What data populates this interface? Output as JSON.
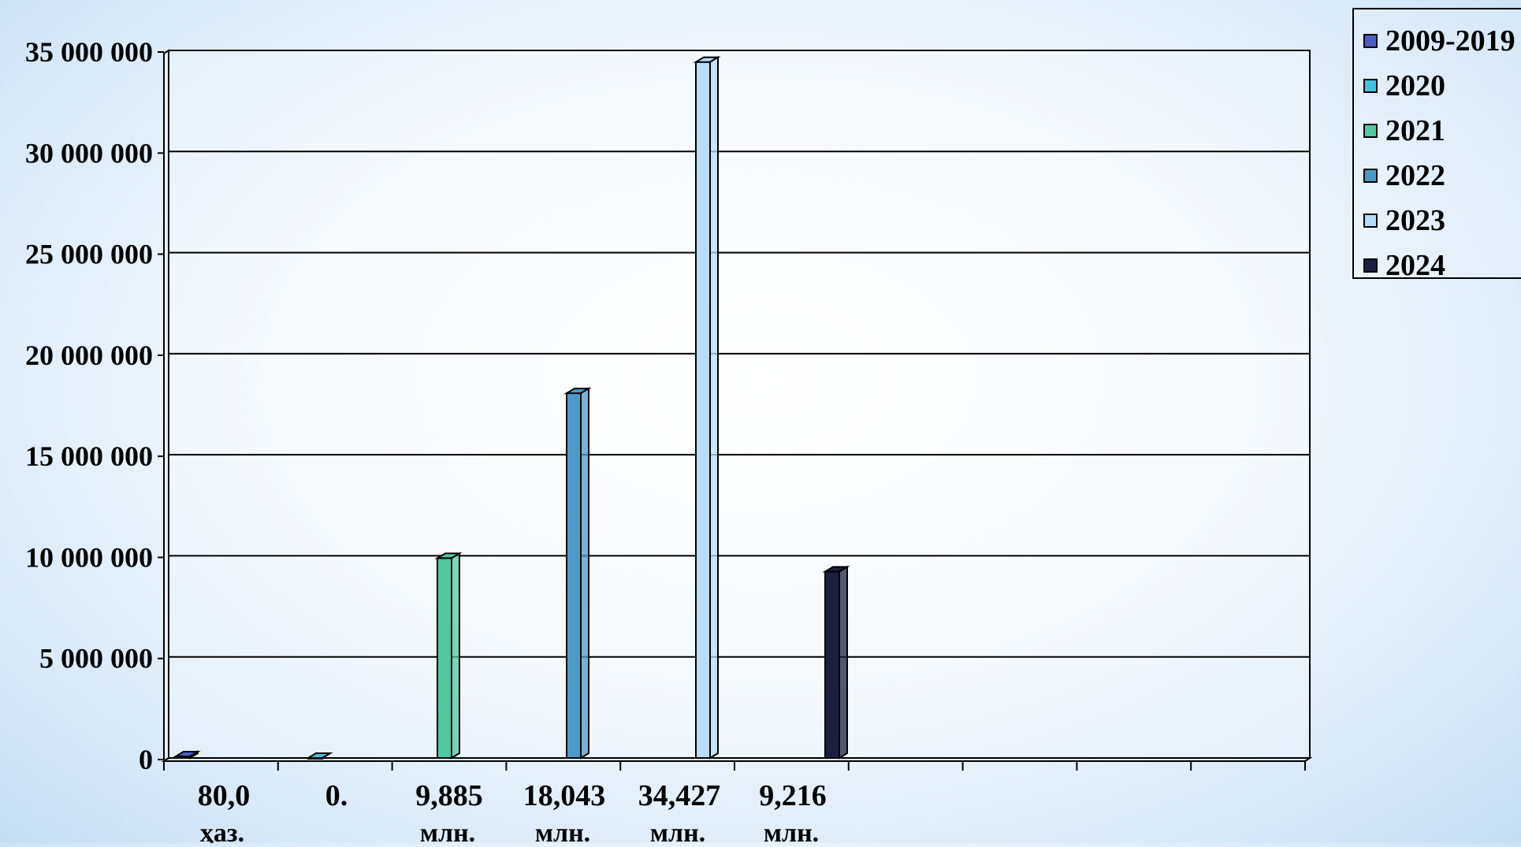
{
  "chart_data": {
    "type": "bar",
    "title": "",
    "xlabel": "",
    "ylabel": "",
    "ylim": [
      0,
      35000000
    ],
    "yticks": [
      "0",
      "5 000 000",
      "10 000 000",
      "15 000 000",
      "20 000 000",
      "25 000 000",
      "30 000 000",
      "35 000 000"
    ],
    "category_labels": [
      {
        "line1": "80,0",
        "line2": "ҳаз."
      },
      {
        "line1": "0.",
        "line2": ""
      },
      {
        "line1": "9,885",
        "line2": "млн."
      },
      {
        "line1": "18,043",
        "line2": "млн."
      },
      {
        "line1": "34,427",
        "line2": "млн."
      },
      {
        "line1": "9,216",
        "line2": "млн."
      }
    ],
    "series": [
      {
        "name": "2009-2019",
        "value": 80000,
        "color": "#4a5fc4"
      },
      {
        "name": "2020",
        "value": 0,
        "color": "#3fc3df"
      },
      {
        "name": "2021",
        "value": 9885000,
        "color": "#4fc9a0"
      },
      {
        "name": "2022",
        "value": 18043000,
        "color": "#4a9cc8"
      },
      {
        "name": "2023",
        "value": 34427000,
        "color": "#b9dbf5"
      },
      {
        "name": "2024",
        "value": 9216000,
        "color": "#1c2040"
      }
    ],
    "grid": true,
    "legend_position": "top-right"
  }
}
